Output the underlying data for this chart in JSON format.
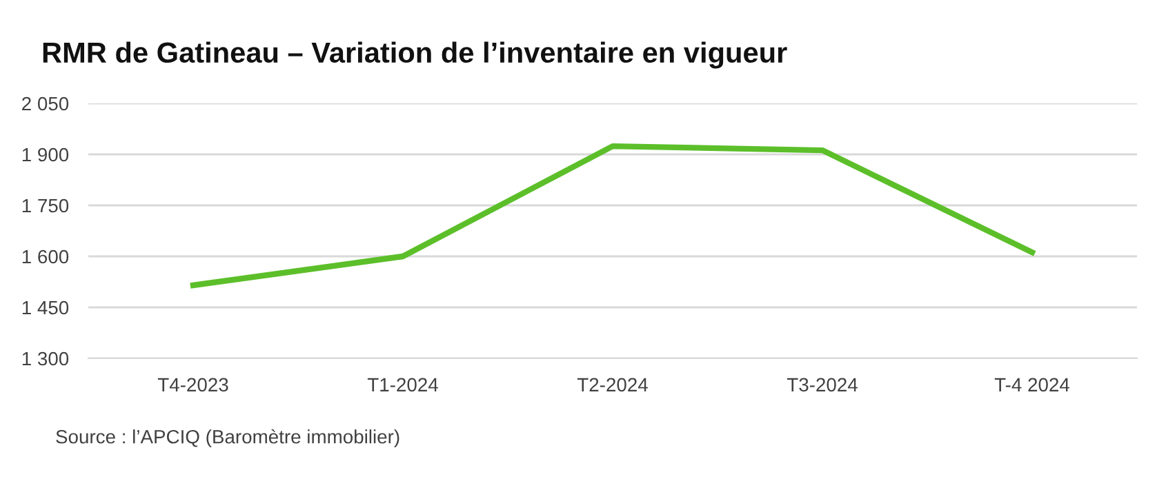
{
  "chart_data": {
    "type": "line",
    "title": "RMR de Gatineau – Variation de l’inventaire en vigueur",
    "categories": [
      "T4-2023",
      "T1-2024",
      "T2-2024",
      "T3-2024",
      "T-4 2024"
    ],
    "series": [
      {
        "color": "#5cbf2a",
        "values": [
          1515,
          1600,
          1924,
          1912,
          1612
        ]
      }
    ],
    "ylim": [
      1300,
      2050
    ],
    "yticks": [
      {
        "value": 1300,
        "label": "1 300"
      },
      {
        "value": 1450,
        "label": "1 450"
      },
      {
        "value": 1600,
        "label": "1 600"
      },
      {
        "value": 1750,
        "label": "1 750"
      },
      {
        "value": 1900,
        "label": "1 900"
      },
      {
        "value": 2050,
        "label": "2 050"
      }
    ],
    "grid": "y",
    "legend": false,
    "marker": "none",
    "line_style": "solid",
    "annotations": [
      "Source : l’APCIQ (Baromètre immobilier)"
    ]
  }
}
